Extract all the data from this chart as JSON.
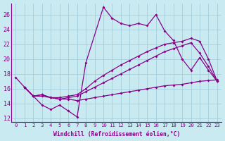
{
  "xlabel": "Windchill (Refroidissement éolien,°C)",
  "xlim": [
    -0.5,
    23.5
  ],
  "ylim": [
    11.5,
    27.5
  ],
  "xticks": [
    0,
    1,
    2,
    3,
    4,
    5,
    6,
    7,
    8,
    9,
    10,
    11,
    12,
    13,
    14,
    15,
    16,
    17,
    18,
    19,
    20,
    21,
    22,
    23
  ],
  "yticks": [
    12,
    14,
    16,
    18,
    20,
    22,
    24,
    26
  ],
  "bg_color": "#c8eaf0",
  "grid_color": "#9ec8d8",
  "line_color": "#880088",
  "series": [
    {
      "x": [
        0,
        1,
        2,
        3,
        4,
        5,
        6,
        7,
        8,
        10,
        11,
        12,
        13,
        14,
        15,
        16,
        17,
        18,
        19,
        20,
        21,
        22,
        23
      ],
      "y": [
        17.5,
        16.2,
        15.0,
        13.8,
        13.2,
        13.8,
        13.0,
        12.2,
        19.5,
        27.0,
        25.5,
        24.8,
        24.5,
        24.8,
        24.5,
        26.0,
        23.8,
        22.5,
        20.0,
        18.5,
        20.2,
        18.5,
        17.0
      ]
    },
    {
      "x": [
        1,
        2,
        3,
        4,
        5,
        6,
        7,
        8,
        9,
        10,
        11,
        12,
        13,
        14,
        15,
        16,
        17,
        18,
        19,
        20,
        21,
        22,
        23
      ],
      "y": [
        16.2,
        15.0,
        15.2,
        14.8,
        14.8,
        15.0,
        15.2,
        16.0,
        17.0,
        17.8,
        18.5,
        19.2,
        19.8,
        20.4,
        21.0,
        21.5,
        22.0,
        22.2,
        22.4,
        22.8,
        22.4,
        20.0,
        17.0
      ]
    },
    {
      "x": [
        1,
        2,
        3,
        4,
        5,
        6,
        7,
        8,
        9,
        10,
        11,
        12,
        13,
        14,
        15,
        16,
        17,
        18,
        19,
        20,
        21,
        22,
        23
      ],
      "y": [
        16.2,
        15.0,
        15.2,
        14.8,
        14.6,
        14.8,
        15.0,
        15.6,
        16.2,
        16.8,
        17.4,
        18.0,
        18.6,
        19.2,
        19.8,
        20.4,
        21.0,
        21.4,
        21.8,
        22.2,
        20.8,
        19.0,
        17.0
      ]
    },
    {
      "x": [
        1,
        2,
        3,
        4,
        5,
        6,
        7,
        8,
        9,
        10,
        11,
        12,
        13,
        14,
        15,
        16,
        17,
        18,
        19,
        20,
        21,
        22,
        23
      ],
      "y": [
        16.2,
        15.0,
        15.0,
        14.8,
        14.6,
        14.6,
        14.4,
        14.6,
        14.8,
        15.0,
        15.2,
        15.4,
        15.6,
        15.8,
        16.0,
        16.2,
        16.4,
        16.5,
        16.6,
        16.8,
        17.0,
        17.1,
        17.2
      ]
    }
  ]
}
